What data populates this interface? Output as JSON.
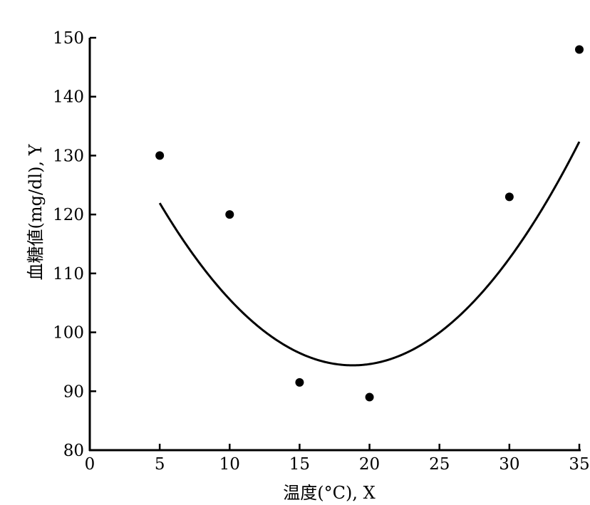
{
  "chart_data": {
    "type": "scatter",
    "xlabel": "温度(°C), X",
    "ylabel": "血糖値(mg/dl), Y",
    "xlim": [
      0,
      35
    ],
    "ylim": [
      80,
      150
    ],
    "xticks": [
      0,
      5,
      10,
      15,
      20,
      25,
      30,
      35
    ],
    "yticks": [
      80,
      90,
      100,
      110,
      120,
      130,
      140,
      150
    ],
    "xtick_labels": [
      "0",
      "5",
      "10",
      "15",
      "20",
      "25",
      "30",
      "35"
    ],
    "ytick_labels": [
      "80",
      "90",
      "100",
      "110",
      "120",
      "130",
      "140",
      "150"
    ],
    "grid": false,
    "points": [
      {
        "x": 5,
        "y": 130
      },
      {
        "x": 10,
        "y": 120
      },
      {
        "x": 15,
        "y": 91.5
      },
      {
        "x": 20,
        "y": 89
      },
      {
        "x": 30,
        "y": 123
      },
      {
        "x": 35,
        "y": 148
      }
    ],
    "fit_curve": {
      "type": "quadratic",
      "x_range": [
        5,
        35
      ],
      "vertex": {
        "x": 18.8,
        "y": 94.4
      }
    }
  }
}
